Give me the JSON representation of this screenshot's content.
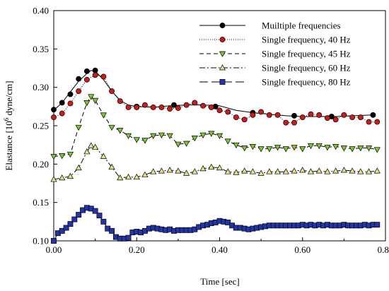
{
  "chart_data": {
    "type": "line",
    "xlabel": "Time [sec]",
    "ylabel_parts": {
      "before": "Elastance [10",
      "sup": "6",
      "after": " dyne/cm]"
    },
    "xlim": [
      0,
      0.8
    ],
    "ylim": [
      0.1,
      0.4
    ],
    "x_ticks": [
      0,
      0.2,
      0.4,
      0.6,
      0.8
    ],
    "x_tick_labels": [
      "0.00",
      "0.20",
      "0.40",
      "0.60",
      "0.80"
    ],
    "y_ticks": [
      0.1,
      0.15,
      0.2,
      0.25,
      0.3,
      0.35,
      0.4
    ],
    "y_tick_labels": [
      "0.10",
      "0.15",
      "0.20",
      "0.25",
      "0.30",
      "0.35",
      "0.40"
    ],
    "grid": false,
    "legend_position": "top-right",
    "series": [
      {
        "name": "Muiltiple frequencies",
        "line_style": "solid",
        "marker": "circle",
        "marker_color": "#000000",
        "line_x": [
          0.0,
          0.02,
          0.04,
          0.06,
          0.08,
          0.09,
          0.1,
          0.12,
          0.14,
          0.16,
          0.18,
          0.2,
          0.24,
          0.28,
          0.32,
          0.36,
          0.4,
          0.44,
          0.48,
          0.52,
          0.56,
          0.6,
          0.64,
          0.68,
          0.72,
          0.77
        ],
        "line_y": [
          0.27,
          0.28,
          0.294,
          0.308,
          0.318,
          0.322,
          0.321,
          0.31,
          0.295,
          0.283,
          0.277,
          0.275,
          0.274,
          0.276,
          0.277,
          0.277,
          0.276,
          0.27,
          0.267,
          0.265,
          0.263,
          0.262,
          0.262,
          0.262,
          0.263,
          0.264
        ],
        "marker_x": [
          0.0,
          0.02,
          0.04,
          0.06,
          0.08,
          0.1,
          0.2,
          0.29,
          0.39,
          0.48,
          0.58,
          0.67,
          0.77
        ],
        "marker_y": [
          0.271,
          0.28,
          0.291,
          0.311,
          0.321,
          0.322,
          0.275,
          0.277,
          0.275,
          0.267,
          0.263,
          0.262,
          0.264
        ]
      },
      {
        "name": "Single frequency, 40 Hz",
        "line_style": "dotted",
        "marker": "circle",
        "marker_color": "#cc1a1a",
        "x": [
          0.0,
          0.02,
          0.04,
          0.06,
          0.08,
          0.1,
          0.12,
          0.14,
          0.16,
          0.18,
          0.2,
          0.22,
          0.24,
          0.26,
          0.28,
          0.3,
          0.32,
          0.34,
          0.36,
          0.38,
          0.4,
          0.42,
          0.44,
          0.46,
          0.48,
          0.5,
          0.52,
          0.54,
          0.56,
          0.58,
          0.6,
          0.62,
          0.64,
          0.66,
          0.68,
          0.7,
          0.72,
          0.74,
          0.76,
          0.78
        ],
        "y": [
          0.261,
          0.266,
          0.279,
          0.295,
          0.31,
          0.316,
          0.314,
          0.295,
          0.282,
          0.274,
          0.274,
          0.277,
          0.274,
          0.274,
          0.272,
          0.273,
          0.277,
          0.28,
          0.276,
          0.274,
          0.27,
          0.268,
          0.261,
          0.258,
          0.264,
          0.268,
          0.264,
          0.264,
          0.254,
          0.254,
          0.261,
          0.265,
          0.264,
          0.26,
          0.258,
          0.264,
          0.261,
          0.261,
          0.255,
          0.255
        ]
      },
      {
        "name": "Single frequency, 45 Hz",
        "line_style": "dashed",
        "marker": "triangle-down",
        "marker_color": "#7ec832",
        "x": [
          0.0,
          0.02,
          0.04,
          0.06,
          0.08,
          0.09,
          0.1,
          0.12,
          0.14,
          0.16,
          0.18,
          0.2,
          0.22,
          0.24,
          0.26,
          0.28,
          0.3,
          0.32,
          0.34,
          0.36,
          0.38,
          0.4,
          0.42,
          0.44,
          0.46,
          0.48,
          0.5,
          0.52,
          0.54,
          0.56,
          0.58,
          0.6,
          0.62,
          0.64,
          0.66,
          0.68,
          0.7,
          0.72,
          0.74,
          0.76,
          0.78
        ],
        "y": [
          0.21,
          0.211,
          0.213,
          0.248,
          0.28,
          0.288,
          0.283,
          0.264,
          0.248,
          0.244,
          0.237,
          0.232,
          0.231,
          0.237,
          0.238,
          0.237,
          0.226,
          0.227,
          0.234,
          0.238,
          0.24,
          0.237,
          0.23,
          0.225,
          0.221,
          0.223,
          0.22,
          0.22,
          0.222,
          0.22,
          0.222,
          0.22,
          0.224,
          0.224,
          0.222,
          0.223,
          0.221,
          0.22,
          0.221,
          0.221,
          0.219
        ]
      },
      {
        "name": "Single frequency, 60 Hz",
        "line_style": "dash-dot",
        "marker": "triangle-up",
        "marker_color": "#e6e08a",
        "x": [
          0.0,
          0.02,
          0.04,
          0.06,
          0.08,
          0.09,
          0.1,
          0.12,
          0.14,
          0.16,
          0.18,
          0.2,
          0.22,
          0.24,
          0.26,
          0.28,
          0.3,
          0.32,
          0.34,
          0.36,
          0.38,
          0.4,
          0.42,
          0.44,
          0.46,
          0.48,
          0.5,
          0.52,
          0.54,
          0.56,
          0.58,
          0.6,
          0.62,
          0.64,
          0.66,
          0.68,
          0.7,
          0.72,
          0.74,
          0.76,
          0.78
        ],
        "y": [
          0.18,
          0.182,
          0.184,
          0.195,
          0.216,
          0.224,
          0.222,
          0.21,
          0.196,
          0.182,
          0.183,
          0.183,
          0.186,
          0.19,
          0.191,
          0.192,
          0.191,
          0.188,
          0.19,
          0.194,
          0.196,
          0.195,
          0.19,
          0.189,
          0.191,
          0.19,
          0.188,
          0.19,
          0.19,
          0.19,
          0.191,
          0.192,
          0.19,
          0.191,
          0.19,
          0.191,
          0.192,
          0.191,
          0.19,
          0.19,
          0.191
        ]
      },
      {
        "name": "Single frequency, 80 Hz",
        "line_style": "long-dash",
        "marker": "square",
        "marker_color": "#2235a8",
        "x": [
          0.0,
          0.01,
          0.02,
          0.03,
          0.04,
          0.05,
          0.06,
          0.07,
          0.08,
          0.09,
          0.1,
          0.11,
          0.12,
          0.13,
          0.14,
          0.15,
          0.16,
          0.17,
          0.18,
          0.19,
          0.2,
          0.21,
          0.22,
          0.23,
          0.24,
          0.25,
          0.26,
          0.27,
          0.28,
          0.29,
          0.3,
          0.31,
          0.32,
          0.33,
          0.34,
          0.35,
          0.36,
          0.37,
          0.38,
          0.39,
          0.4,
          0.41,
          0.42,
          0.43,
          0.44,
          0.45,
          0.46,
          0.47,
          0.48,
          0.49,
          0.5,
          0.51,
          0.52,
          0.53,
          0.54,
          0.55,
          0.56,
          0.57,
          0.58,
          0.59,
          0.6,
          0.61,
          0.62,
          0.63,
          0.64,
          0.65,
          0.66,
          0.67,
          0.68,
          0.69,
          0.7,
          0.71,
          0.72,
          0.73,
          0.74,
          0.75,
          0.76,
          0.77,
          0.78
        ],
        "y": [
          0.1,
          0.11,
          0.113,
          0.117,
          0.122,
          0.128,
          0.134,
          0.14,
          0.143,
          0.142,
          0.139,
          0.133,
          0.125,
          0.116,
          0.113,
          0.105,
          0.103,
          0.103,
          0.104,
          0.111,
          0.112,
          0.111,
          0.113,
          0.116,
          0.117,
          0.116,
          0.115,
          0.114,
          0.115,
          0.113,
          0.114,
          0.114,
          0.114,
          0.114,
          0.115,
          0.118,
          0.12,
          0.121,
          0.123,
          0.124,
          0.126,
          0.125,
          0.124,
          0.12,
          0.117,
          0.117,
          0.116,
          0.115,
          0.116,
          0.117,
          0.118,
          0.119,
          0.12,
          0.12,
          0.12,
          0.12,
          0.12,
          0.12,
          0.12,
          0.12,
          0.121,
          0.12,
          0.121,
          0.12,
          0.121,
          0.12,
          0.121,
          0.12,
          0.12,
          0.12,
          0.121,
          0.12,
          0.12,
          0.12,
          0.12,
          0.121,
          0.12,
          0.121,
          0.121
        ]
      }
    ]
  }
}
